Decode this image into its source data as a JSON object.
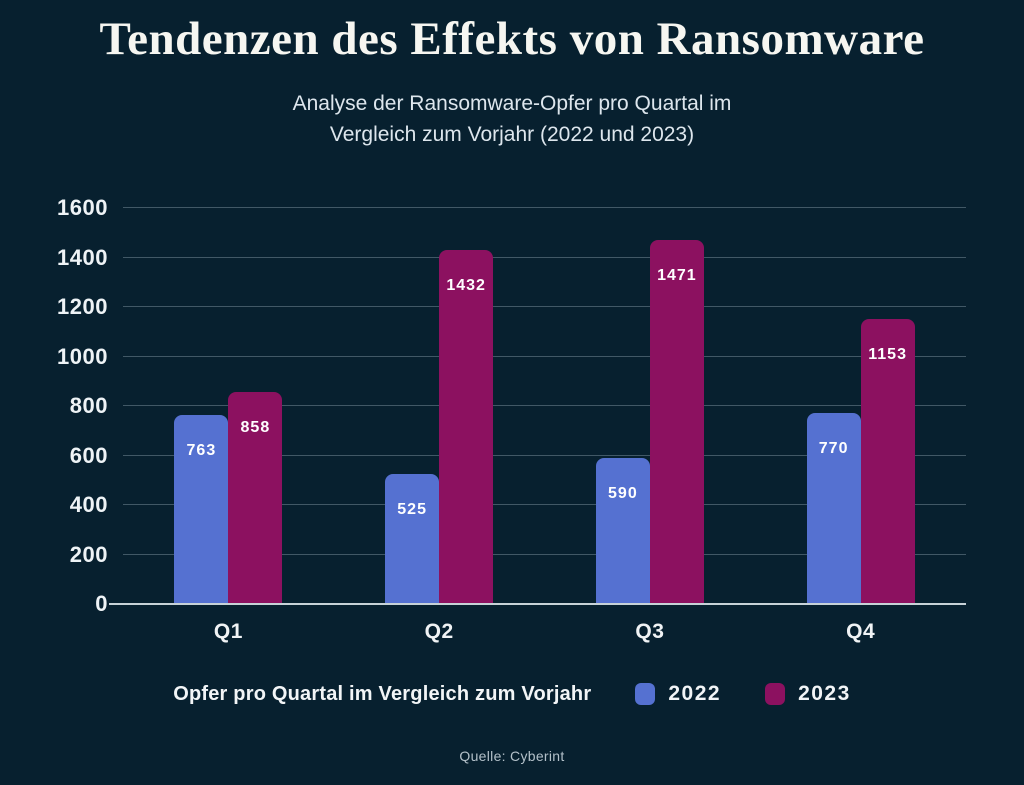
{
  "page": {
    "title": "Tendenzen des Effekts von Ransomware",
    "subtitle_line1": "Analyse der Ransomware-Opfer pro Quartal im",
    "subtitle_line2": "Vergleich zum Vorjahr (2022 und 2023)",
    "source": "Quelle: Cyberint"
  },
  "legend": {
    "label": "Opfer pro Quartal im Vergleich zum Vorjahr",
    "items": [
      {
        "name": "2022",
        "color": "#5571d1"
      },
      {
        "name": "2023",
        "color": "#8c1160"
      }
    ]
  },
  "colors": {
    "background": "#07202f",
    "bar_2022": "#5571d1",
    "bar_2023": "#8c1160",
    "gridline": "rgba(202,220,231,0.30)",
    "axis_line": "#c7d2d8",
    "text": "#f2f5f7"
  },
  "chart_data": {
    "type": "bar",
    "title": "Tendenzen des Effekts von Ransomware",
    "subtitle": "Analyse der Ransomware-Opfer pro Quartal im Vergleich zum Vorjahr (2022 und 2023)",
    "categories": [
      "Q1",
      "Q2",
      "Q3",
      "Q4"
    ],
    "series": [
      {
        "name": "2022",
        "color": "#5571d1",
        "values": [
          763,
          525,
          590,
          770
        ]
      },
      {
        "name": "2023",
        "color": "#8c1160",
        "values": [
          858,
          1432,
          1471,
          1153
        ]
      }
    ],
    "xlabel": "",
    "ylabel": "",
    "ylim": [
      0,
      1600
    ],
    "ytick_step": 200,
    "grid": true,
    "legend_position": "bottom",
    "value_labels": "inside-top"
  }
}
